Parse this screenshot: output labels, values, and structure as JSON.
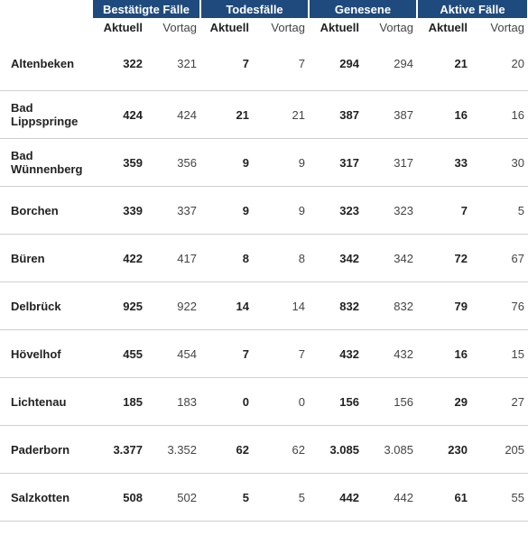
{
  "groups": [
    "Bestätigte Fälle",
    "Todesfälle",
    "Genesene",
    "Aktive Fälle"
  ],
  "sub_current": "Aktuell",
  "sub_previous": "Vortag",
  "rows": [
    {
      "name": "Altenbeken",
      "v": [
        "322",
        "321",
        "7",
        "7",
        "294",
        "294",
        "21",
        "20"
      ]
    },
    {
      "name": "Bad Lippspringe",
      "v": [
        "424",
        "424",
        "21",
        "21",
        "387",
        "387",
        "16",
        "16"
      ]
    },
    {
      "name": "Bad Wünnenberg",
      "v": [
        "359",
        "356",
        "9",
        "9",
        "317",
        "317",
        "33",
        "30"
      ]
    },
    {
      "name": "Borchen",
      "v": [
        "339",
        "337",
        "9",
        "9",
        "323",
        "323",
        "7",
        "5"
      ]
    },
    {
      "name": "Büren",
      "v": [
        "422",
        "417",
        "8",
        "8",
        "342",
        "342",
        "72",
        "67"
      ]
    },
    {
      "name": "Delbrück",
      "v": [
        "925",
        "922",
        "14",
        "14",
        "832",
        "832",
        "79",
        "76"
      ]
    },
    {
      "name": "Hövelhof",
      "v": [
        "455",
        "454",
        "7",
        "7",
        "432",
        "432",
        "16",
        "15"
      ]
    },
    {
      "name": "Lichtenau",
      "v": [
        "185",
        "183",
        "0",
        "0",
        "156",
        "156",
        "29",
        "27"
      ]
    },
    {
      "name": "Paderborn",
      "v": [
        "3.377",
        "3.352",
        "62",
        "62",
        "3.085",
        "3.085",
        "230",
        "205"
      ]
    },
    {
      "name": "Salzkotten",
      "v": [
        "508",
        "502",
        "5",
        "5",
        "442",
        "442",
        "61",
        "55"
      ]
    }
  ]
}
